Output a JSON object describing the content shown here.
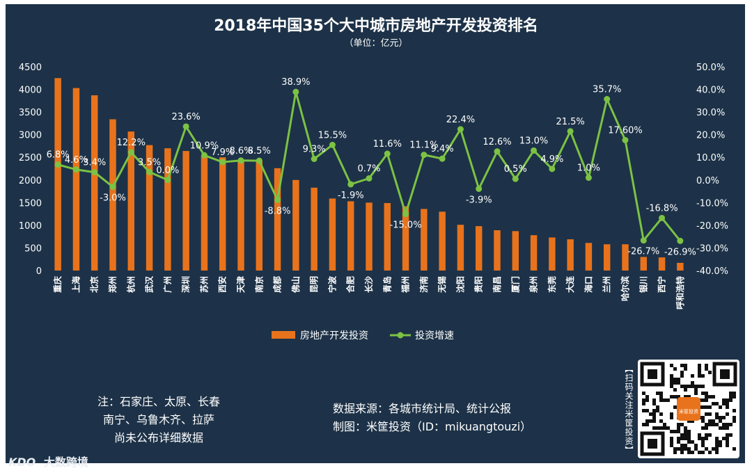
{
  "chart_data": {
    "type": "bar+line",
    "title": "2018年中国35个大中城市房地产开发投资排名",
    "subtitle": "（单位：亿元）",
    "categories": [
      "重庆",
      "上海",
      "北京",
      "郑州",
      "杭州",
      "武汉",
      "广州",
      "深圳",
      "苏州",
      "西安",
      "天津",
      "南京",
      "成都",
      "佛山",
      "昆明",
      "宁波",
      "合肥",
      "长沙",
      "青岛",
      "福州",
      "济南",
      "无锡",
      "沈阳",
      "贵阳",
      "南昌",
      "厦门",
      "泉州",
      "东莞",
      "大连",
      "海口",
      "兰州",
      "哈尔滨",
      "银川",
      "西宁",
      "呼和浩特"
    ],
    "series": [
      {
        "name": "房地产开发投资",
        "type": "bar",
        "axis": "left",
        "color": "#e8731c",
        "values": [
          4250,
          4030,
          3870,
          3340,
          3070,
          2770,
          2700,
          2640,
          2530,
          2500,
          2450,
          2430,
          2260,
          2000,
          1830,
          1590,
          1530,
          1500,
          1490,
          1420,
          1360,
          1300,
          1010,
          980,
          890,
          870,
          780,
          730,
          690,
          610,
          580,
          580,
          300,
          290,
          170
        ]
      },
      {
        "name": "投资增速",
        "type": "line",
        "axis": "right",
        "color": "#7cc244",
        "values": [
          6.8,
          4.6,
          3.4,
          -3.0,
          12.2,
          3.5,
          0.0,
          23.6,
          10.9,
          7.9,
          8.6,
          8.5,
          -8.8,
          38.9,
          9.3,
          15.5,
          -1.9,
          0.7,
          11.6,
          -15.0,
          11.1,
          9.4,
          22.4,
          -3.9,
          12.6,
          0.5,
          13.0,
          4.9,
          21.5,
          1.0,
          35.7,
          17.6,
          -26.7,
          -16.8,
          -26.9
        ],
        "labels": [
          "6.8%",
          "4.6%",
          "3.4%",
          "-3.0%",
          "12.2%",
          "3.5%",
          "0.0%",
          "23.6%",
          "10.9%",
          "7.9%",
          "8.6%",
          "8.5%",
          "-8.8%",
          "38.9%",
          "9.3%",
          "15.5%",
          "-1.9%",
          "0.7%",
          "11.6%",
          "-15.0%",
          "11.1%",
          "9.4%",
          "22.4%",
          "-3.9%",
          "12.6%",
          "0.5%",
          "13.0%",
          "4.9%",
          "21.5%",
          "1.0%",
          "35.7%",
          "17.60%",
          "-26.7%",
          "-16.8%",
          "-26.9%"
        ]
      }
    ],
    "y_left": {
      "min": 0,
      "max": 4500,
      "ticks": [
        "0",
        "500",
        "1000",
        "1500",
        "2000",
        "2500",
        "3000",
        "3500",
        "4000",
        "4500"
      ]
    },
    "y_right": {
      "min": -40,
      "max": 50,
      "ticks": [
        "-40.0%",
        "-30.0%",
        "-20.0%",
        "-10.0%",
        "0.0%",
        "10.0%",
        "20.0%",
        "30.0%",
        "40.0%",
        "50.0%"
      ]
    },
    "legend_position": "bottom-center"
  },
  "notes": {
    "line1": "注：石家庄、太原、长春",
    "line2": "南宁、乌鲁木齐、拉萨",
    "line3": "尚未公布详细数据"
  },
  "source": {
    "data_source": "数据来源：各城市统计局、统计公报",
    "made_by": "制图：米筐投资（ID：mikuangtouzi）"
  },
  "qr": {
    "side_text": "【扫码关注米筐投资】",
    "badge": "米筐投资"
  },
  "watermark": {
    "logo": "KDO",
    "text": "大数跨境"
  },
  "colors": {
    "panel": "#1d3248",
    "bar": "#e8731c",
    "line": "#7cc244",
    "text": "#ffffff"
  }
}
